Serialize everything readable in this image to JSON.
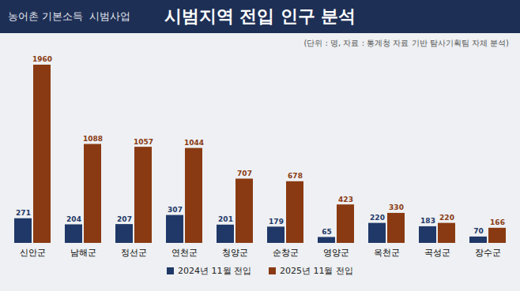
{
  "chart_data": {
    "type": "bar",
    "title": "시범지역 전입 인구 분석",
    "subtitle": "(단위 : 명, 자료 : 통계청 자료 기반 탐사기획팀 자체 분석)",
    "annotations": [
      "농어촌 기본소득  시범사업"
    ],
    "categories": [
      "신안군",
      "남해군",
      "정선군",
      "연천군",
      "청양군",
      "순창군",
      "영양군",
      "옥천군",
      "곡성군",
      "장수군"
    ],
    "series": [
      {
        "name": "2024년 11월 전입",
        "color": "#1f3868",
        "values": [
          271,
          204,
          207,
          307,
          201,
          179,
          65,
          220,
          183,
          70
        ]
      },
      {
        "name": "2025년 11월 전입",
        "color": "#8a3a12",
        "values": [
          1960,
          1088,
          1057,
          1044,
          707,
          678,
          423,
          330,
          220,
          166
        ]
      }
    ],
    "data_labels": true,
    "tick_labels": "x",
    "legend": "bottom"
  }
}
